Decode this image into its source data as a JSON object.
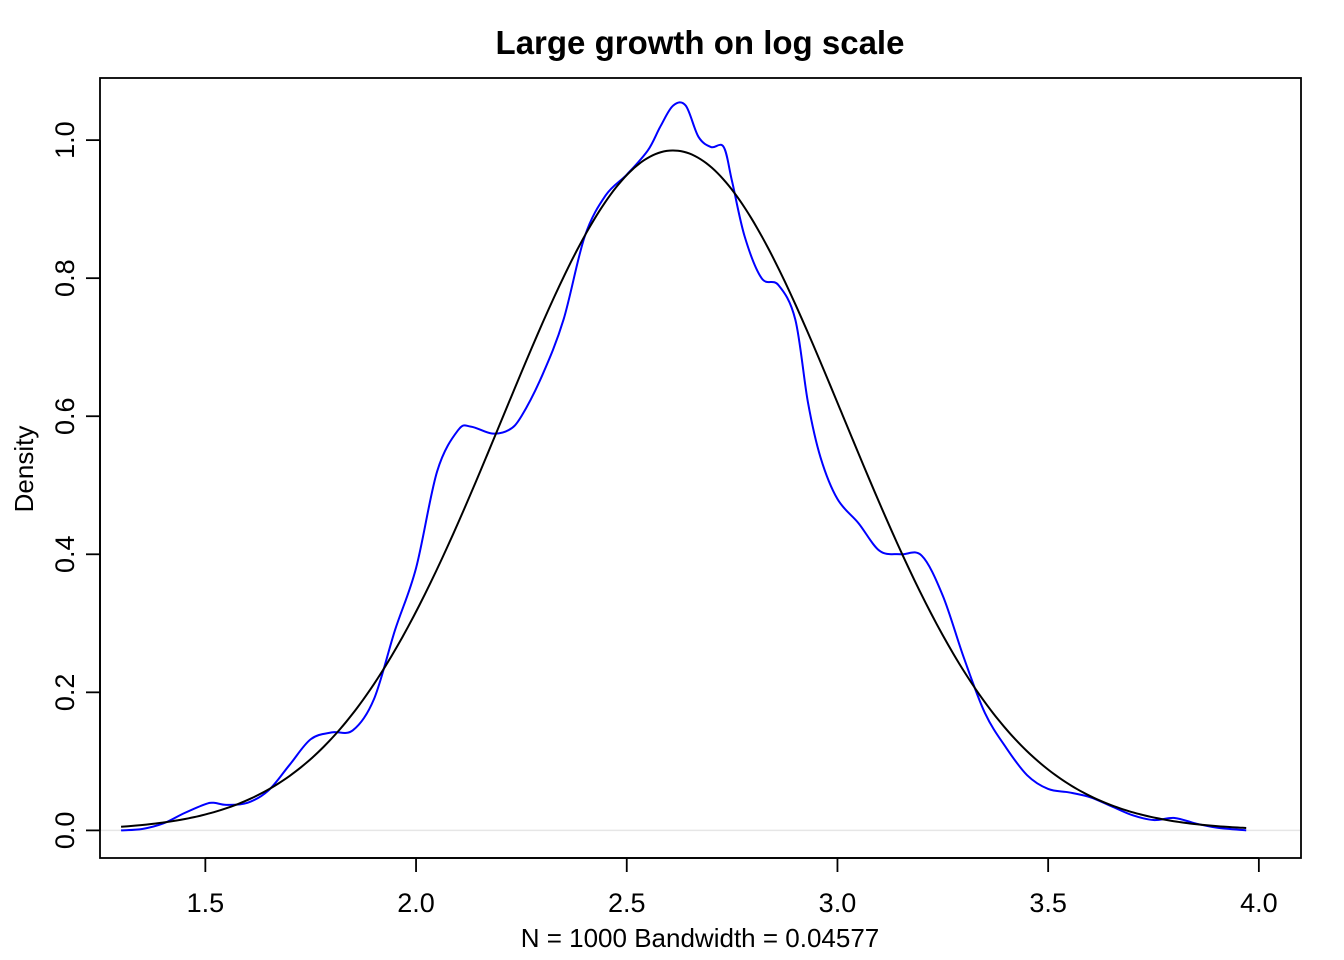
{
  "chart_data": {
    "type": "line",
    "title": "Large growth on log scale",
    "xlabel": "N = 1000   Bandwidth = 0.04577",
    "ylabel": "Density",
    "xlim": [
      1.25,
      4.1
    ],
    "ylim": [
      -0.04,
      1.09
    ],
    "xticks": [
      "1.5",
      "2.0",
      "2.5",
      "3.0",
      "3.5",
      "4.0"
    ],
    "yticks": [
      "0.0",
      "0.2",
      "0.4",
      "0.6",
      "0.8",
      "1.0"
    ],
    "grid": false,
    "baseline": 0,
    "series": [
      {
        "color": "#0000ff",
        "x": [
          1.3,
          1.35,
          1.4,
          1.45,
          1.5,
          1.52,
          1.55,
          1.6,
          1.65,
          1.7,
          1.75,
          1.8,
          1.85,
          1.9,
          1.95,
          2.0,
          2.05,
          2.1,
          2.13,
          2.18,
          2.22,
          2.25,
          2.3,
          2.35,
          2.4,
          2.45,
          2.5,
          2.55,
          2.58,
          2.61,
          2.64,
          2.67,
          2.7,
          2.73,
          2.75,
          2.78,
          2.82,
          2.86,
          2.9,
          2.93,
          2.96,
          3.0,
          3.05,
          3.1,
          3.15,
          3.2,
          3.25,
          3.3,
          3.35,
          3.4,
          3.45,
          3.5,
          3.55,
          3.6,
          3.65,
          3.7,
          3.75,
          3.8,
          3.85,
          3.9,
          3.97
        ],
        "values": [
          0.0,
          0.002,
          0.01,
          0.025,
          0.038,
          0.04,
          0.037,
          0.04,
          0.058,
          0.095,
          0.132,
          0.142,
          0.145,
          0.19,
          0.29,
          0.38,
          0.52,
          0.58,
          0.585,
          0.575,
          0.58,
          0.6,
          0.66,
          0.74,
          0.86,
          0.92,
          0.95,
          0.985,
          1.02,
          1.05,
          1.05,
          1.005,
          0.99,
          0.99,
          0.94,
          0.86,
          0.8,
          0.79,
          0.74,
          0.62,
          0.54,
          0.48,
          0.445,
          0.405,
          0.4,
          0.398,
          0.34,
          0.25,
          0.17,
          0.12,
          0.08,
          0.06,
          0.055,
          0.048,
          0.035,
          0.022,
          0.015,
          0.018,
          0.01,
          0.004,
          0.0
        ]
      },
      {
        "color": "#000000",
        "distribution": "normal",
        "mean": 2.61,
        "sd": 0.405,
        "xrange": [
          1.3,
          3.97
        ]
      }
    ]
  }
}
